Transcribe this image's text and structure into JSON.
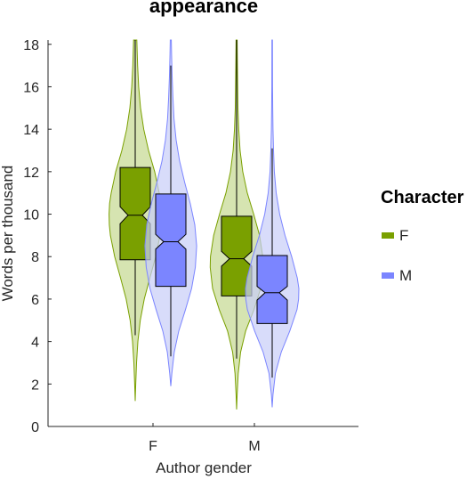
{
  "chart_data": {
    "type": "violin",
    "title": "appearance",
    "xlabel": "Author gender",
    "ylabel": "Words per thousand",
    "ylim": [
      0,
      18.2
    ],
    "yticks": [
      0,
      2,
      4,
      6,
      8,
      10,
      12,
      14,
      16,
      18
    ],
    "categories": [
      "F",
      "M"
    ],
    "legend": {
      "title": "Character",
      "position": "right"
    },
    "grid": false,
    "series": [
      {
        "name": "F",
        "color": "#7aa000",
        "fill": "#c5d890",
        "box": [
          {
            "category": "F",
            "whisker_low": 4.3,
            "q1": 7.85,
            "median": 9.95,
            "q3": 12.2,
            "whisker_high": 18.2,
            "notch": [
              9.55,
              10.35
            ]
          },
          {
            "category": "M",
            "whisker_low": 3.2,
            "q1": 6.15,
            "median": 7.9,
            "q3": 9.9,
            "whisker_high": 18.2,
            "notch": [
              7.55,
              8.25
            ]
          }
        ],
        "violin": [
          {
            "category": "F",
            "min": 1.2,
            "max": 18.2,
            "profile": [
              [
                1.2,
                0.0
              ],
              [
                2,
                0.02
              ],
              [
                3,
                0.05
              ],
              [
                4,
                0.1
              ],
              [
                5,
                0.19
              ],
              [
                6,
                0.34
              ],
              [
                7,
                0.55
              ],
              [
                8,
                0.77
              ],
              [
                9,
                0.93
              ],
              [
                9.5,
                0.97
              ],
              [
                10,
                0.98
              ],
              [
                10.5,
                0.96
              ],
              [
                11,
                0.9
              ],
              [
                12,
                0.73
              ],
              [
                13,
                0.5
              ],
              [
                14,
                0.32
              ],
              [
                15,
                0.2
              ],
              [
                16,
                0.13
              ],
              [
                17,
                0.09
              ],
              [
                18.2,
                0.06
              ]
            ]
          },
          {
            "category": "M",
            "min": 0.8,
            "max": 18.2,
            "profile": [
              [
                0.8,
                0.0
              ],
              [
                1.5,
                0.02
              ],
              [
                2.5,
                0.06
              ],
              [
                3.5,
                0.15
              ],
              [
                4.5,
                0.34
              ],
              [
                5.5,
                0.65
              ],
              [
                6.5,
                0.9
              ],
              [
                7.5,
                0.99
              ],
              [
                8,
                0.98
              ],
              [
                9,
                0.86
              ],
              [
                10,
                0.64
              ],
              [
                11,
                0.4
              ],
              [
                12,
                0.23
              ],
              [
                13,
                0.13
              ],
              [
                14,
                0.08
              ],
              [
                15,
                0.05
              ],
              [
                16,
                0.04
              ],
              [
                17,
                0.03
              ],
              [
                18.2,
                0.02
              ]
            ]
          }
        ]
      },
      {
        "name": "M",
        "color": "#7b85ff",
        "fill": "#c8cdf8",
        "box": [
          {
            "category": "F",
            "whisker_low": 3.3,
            "q1": 6.6,
            "median": 8.7,
            "q3": 10.95,
            "whisker_high": 17.0,
            "notch": [
              8.35,
              9.05
            ]
          },
          {
            "category": "M",
            "whisker_low": 2.3,
            "q1": 4.85,
            "median": 6.3,
            "q3": 8.05,
            "whisker_high": 13.1,
            "notch": [
              5.95,
              6.6
            ]
          }
        ],
        "violin": [
          {
            "category": "F",
            "min": 1.9,
            "max": 18.2,
            "profile": [
              [
                1.9,
                0.0
              ],
              [
                2.5,
                0.04
              ],
              [
                3.5,
                0.13
              ],
              [
                4.5,
                0.3
              ],
              [
                5.5,
                0.55
              ],
              [
                6.5,
                0.78
              ],
              [
                7.5,
                0.92
              ],
              [
                8.5,
                0.97
              ],
              [
                9.5,
                0.9
              ],
              [
                10.5,
                0.73
              ],
              [
                11.5,
                0.52
              ],
              [
                12.5,
                0.33
              ],
              [
                13.5,
                0.2
              ],
              [
                14.5,
                0.12
              ],
              [
                15.5,
                0.08
              ],
              [
                16.5,
                0.05
              ],
              [
                17.5,
                0.03
              ],
              [
                18.2,
                0.02
              ]
            ]
          },
          {
            "category": "M",
            "min": 0.9,
            "max": 18.2,
            "profile": [
              [
                0.9,
                0.0
              ],
              [
                1.5,
                0.03
              ],
              [
                2.5,
                0.12
              ],
              [
                3.5,
                0.34
              ],
              [
                4.5,
                0.66
              ],
              [
                5.5,
                0.93
              ],
              [
                6,
                0.99
              ],
              [
                6.5,
                1.0
              ],
              [
                7,
                0.94
              ],
              [
                8,
                0.73
              ],
              [
                9,
                0.48
              ],
              [
                10,
                0.28
              ],
              [
                11,
                0.15
              ],
              [
                12,
                0.08
              ],
              [
                13,
                0.05
              ],
              [
                14,
                0.03
              ],
              [
                15,
                0.02
              ],
              [
                16,
                0.015
              ],
              [
                18.2,
                0.01
              ]
            ]
          }
        ]
      }
    ]
  }
}
